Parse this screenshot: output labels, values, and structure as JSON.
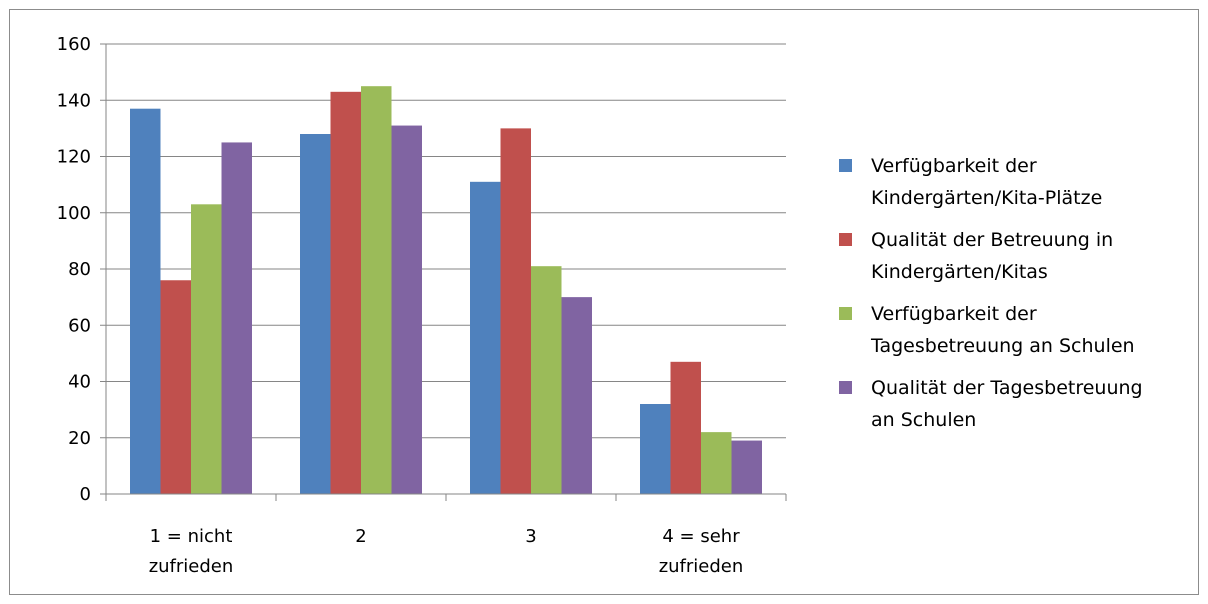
{
  "chart_data": {
    "type": "bar",
    "categories": [
      [
        "1 = nicht",
        "zufrieden"
      ],
      [
        "2"
      ],
      [
        "3"
      ],
      [
        "4 = sehr",
        "zufrieden"
      ]
    ],
    "series": [
      {
        "name": [
          "Verfügbarkeit der",
          "Kindergärten/Kita-Plätze"
        ],
        "color": "#4f81bd",
        "values": [
          137,
          128,
          111,
          32
        ]
      },
      {
        "name": [
          "Qualität der Betreuung in",
          "Kindergärten/Kitas"
        ],
        "color": "#c0504d",
        "values": [
          76,
          143,
          130,
          47
        ]
      },
      {
        "name": [
          "Verfügbarkeit der",
          "Tagesbetreuung an Schulen"
        ],
        "color": "#9bbb59",
        "values": [
          103,
          145,
          81,
          22
        ]
      },
      {
        "name": [
          "Qualität der Tagesbetreuung",
          "an Schulen"
        ],
        "color": "#8064a2",
        "values": [
          125,
          131,
          70,
          19
        ]
      }
    ],
    "ylim": [
      0,
      160
    ],
    "yticks": [
      "0",
      "20",
      "40",
      "60",
      "80",
      "100",
      "120",
      "140",
      "160"
    ],
    "grid": true,
    "legend_position": "right",
    "title": "",
    "xlabel": "",
    "ylabel": ""
  }
}
